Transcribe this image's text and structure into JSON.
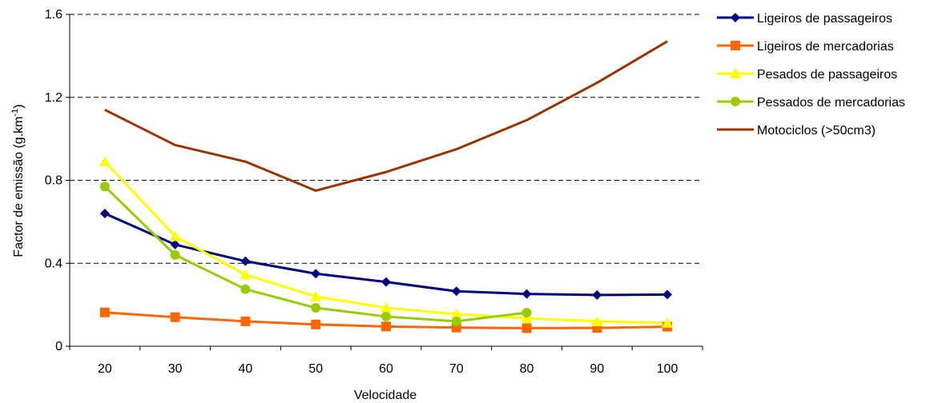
{
  "chart_data": {
    "type": "line",
    "xlabel": "Velocidade",
    "ylabel_main": "Factor de emissão (g.km",
    "ylabel_sup": "-1",
    "ylabel_close": ")",
    "categories": [
      "20",
      "30",
      "40",
      "50",
      "60",
      "70",
      "80",
      "90",
      "100"
    ],
    "x": [
      20,
      30,
      40,
      50,
      60,
      70,
      80,
      90,
      100
    ],
    "ylim": [
      0,
      1.6
    ],
    "yticks": [
      "0",
      "0.4",
      "0.8",
      "1.2",
      "1.6"
    ],
    "ytick_values": [
      0,
      0.4,
      0.8,
      1.2,
      1.6
    ],
    "grid": true,
    "legend_position": "right",
    "series": [
      {
        "name": "Ligeiros de passageiros",
        "color": "#000080",
        "marker": "diamond",
        "values": [
          0.64,
          0.49,
          0.41,
          0.35,
          0.31,
          0.265,
          0.252,
          0.247,
          0.249
        ]
      },
      {
        "name": "Ligeiros de mercadorias",
        "color": "#FF6600",
        "marker": "square",
        "values": [
          0.163,
          0.14,
          0.12,
          0.105,
          0.095,
          0.09,
          0.087,
          0.088,
          0.094
        ]
      },
      {
        "name": "Pesados de passageiros",
        "color": "#FFFF00",
        "marker": "triangle",
        "values": [
          0.89,
          0.53,
          0.345,
          0.24,
          0.185,
          0.155,
          0.135,
          0.12,
          0.113
        ]
      },
      {
        "name": "Pessados de mercadorias",
        "color": "#99CC00",
        "marker": "circle",
        "values": [
          0.77,
          0.44,
          0.275,
          0.185,
          0.143,
          0.12,
          0.162,
          null,
          null
        ]
      },
      {
        "name": "Motociclos (>50cm3)",
        "color": "#993300",
        "marker": "none",
        "values": [
          1.14,
          0.97,
          0.89,
          0.75,
          0.84,
          0.95,
          1.09,
          1.27,
          1.47
        ]
      }
    ]
  }
}
